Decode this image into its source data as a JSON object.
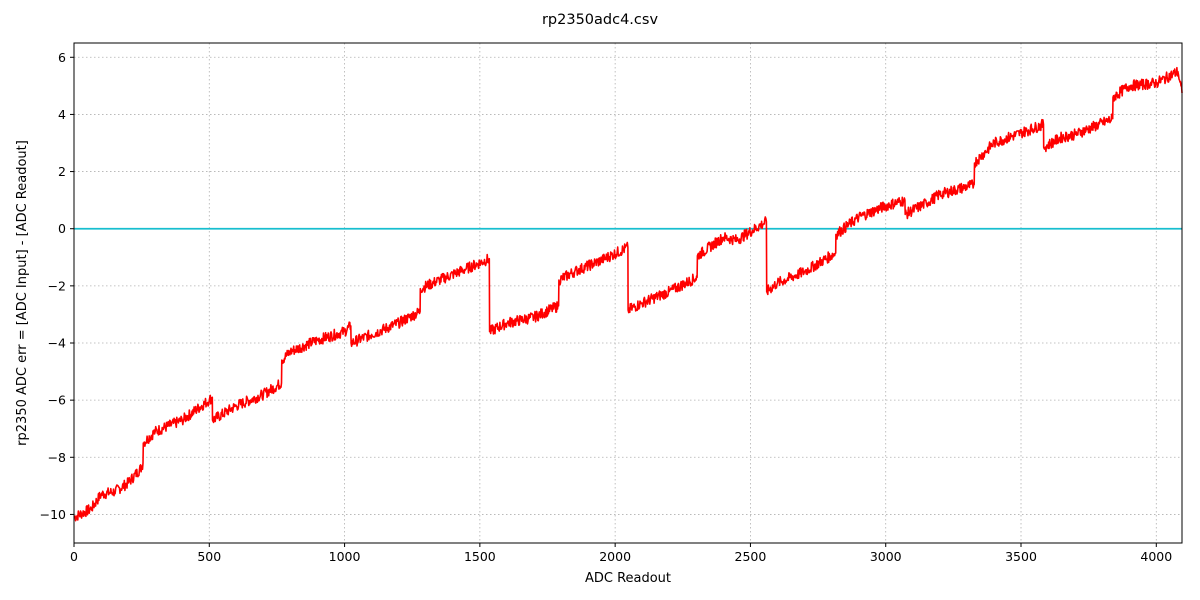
{
  "chart_data": {
    "type": "line",
    "title": "rp2350adc4.csv",
    "xlabel": "ADC Readout",
    "ylabel": "rp2350 ADC err = [ADC Input] - [ADC Readout]",
    "xlim": [
      0,
      4095
    ],
    "ylim": [
      -11,
      6.5
    ],
    "xticks": [
      0,
      500,
      1000,
      1500,
      2000,
      2500,
      3000,
      3500,
      4000
    ],
    "yticks": [
      -10,
      -8,
      -6,
      -4,
      -2,
      0,
      2,
      4,
      6
    ],
    "grid": true,
    "legend": "none",
    "reference_line": {
      "y": 0,
      "color": "#17becf"
    },
    "series": [
      {
        "color": "#ff0000",
        "points": [
          [
            0,
            -10.1
          ],
          [
            64,
            -9.8
          ],
          [
            100,
            -9.3
          ],
          [
            150,
            -9.2
          ],
          [
            200,
            -8.9
          ],
          [
            250,
            -8.35
          ],
          [
            255,
            -8.2
          ],
          [
            256,
            -7.5
          ],
          [
            300,
            -7.1
          ],
          [
            400,
            -6.7
          ],
          [
            500,
            -6.0
          ],
          [
            511,
            -5.9
          ],
          [
            512,
            -6.7
          ],
          [
            600,
            -6.2
          ],
          [
            700,
            -5.8
          ],
          [
            767,
            -5.4
          ],
          [
            768,
            -4.6
          ],
          [
            800,
            -4.3
          ],
          [
            900,
            -3.9
          ],
          [
            1000,
            -3.6
          ],
          [
            1023,
            -3.4
          ],
          [
            1024,
            -4.0
          ],
          [
            1100,
            -3.7
          ],
          [
            1200,
            -3.3
          ],
          [
            1279,
            -2.9
          ],
          [
            1280,
            -2.1
          ],
          [
            1350,
            -1.8
          ],
          [
            1450,
            -1.4
          ],
          [
            1535,
            -1.05
          ],
          [
            1536,
            -3.6
          ],
          [
            1600,
            -3.3
          ],
          [
            1700,
            -3.1
          ],
          [
            1791,
            -2.7
          ],
          [
            1792,
            -1.8
          ],
          [
            1850,
            -1.5
          ],
          [
            1950,
            -1.1
          ],
          [
            2047,
            -0.65
          ],
          [
            2048,
            -2.85
          ],
          [
            2100,
            -2.6
          ],
          [
            2200,
            -2.2
          ],
          [
            2303,
            -1.7
          ],
          [
            2304,
            -0.95
          ],
          [
            2400,
            -0.3
          ],
          [
            2450,
            -0.4
          ],
          [
            2559,
            0.25
          ],
          [
            2560,
            -2.2
          ],
          [
            2600,
            -1.9
          ],
          [
            2700,
            -1.5
          ],
          [
            2815,
            -0.85
          ],
          [
            2816,
            -0.2
          ],
          [
            2900,
            0.4
          ],
          [
            3000,
            0.8
          ],
          [
            3071,
            1.0
          ],
          [
            3072,
            0.5
          ],
          [
            3150,
            0.9
          ],
          [
            3200,
            1.2
          ],
          [
            3327,
            1.55
          ],
          [
            3328,
            2.3
          ],
          [
            3400,
            3.0
          ],
          [
            3500,
            3.35
          ],
          [
            3583,
            3.65
          ],
          [
            3584,
            2.85
          ],
          [
            3650,
            3.2
          ],
          [
            3700,
            3.3
          ],
          [
            3839,
            3.85
          ],
          [
            3840,
            4.6
          ],
          [
            3900,
            5.0
          ],
          [
            4000,
            5.1
          ],
          [
            4080,
            5.5
          ],
          [
            4095,
            4.75
          ]
        ]
      }
    ]
  }
}
